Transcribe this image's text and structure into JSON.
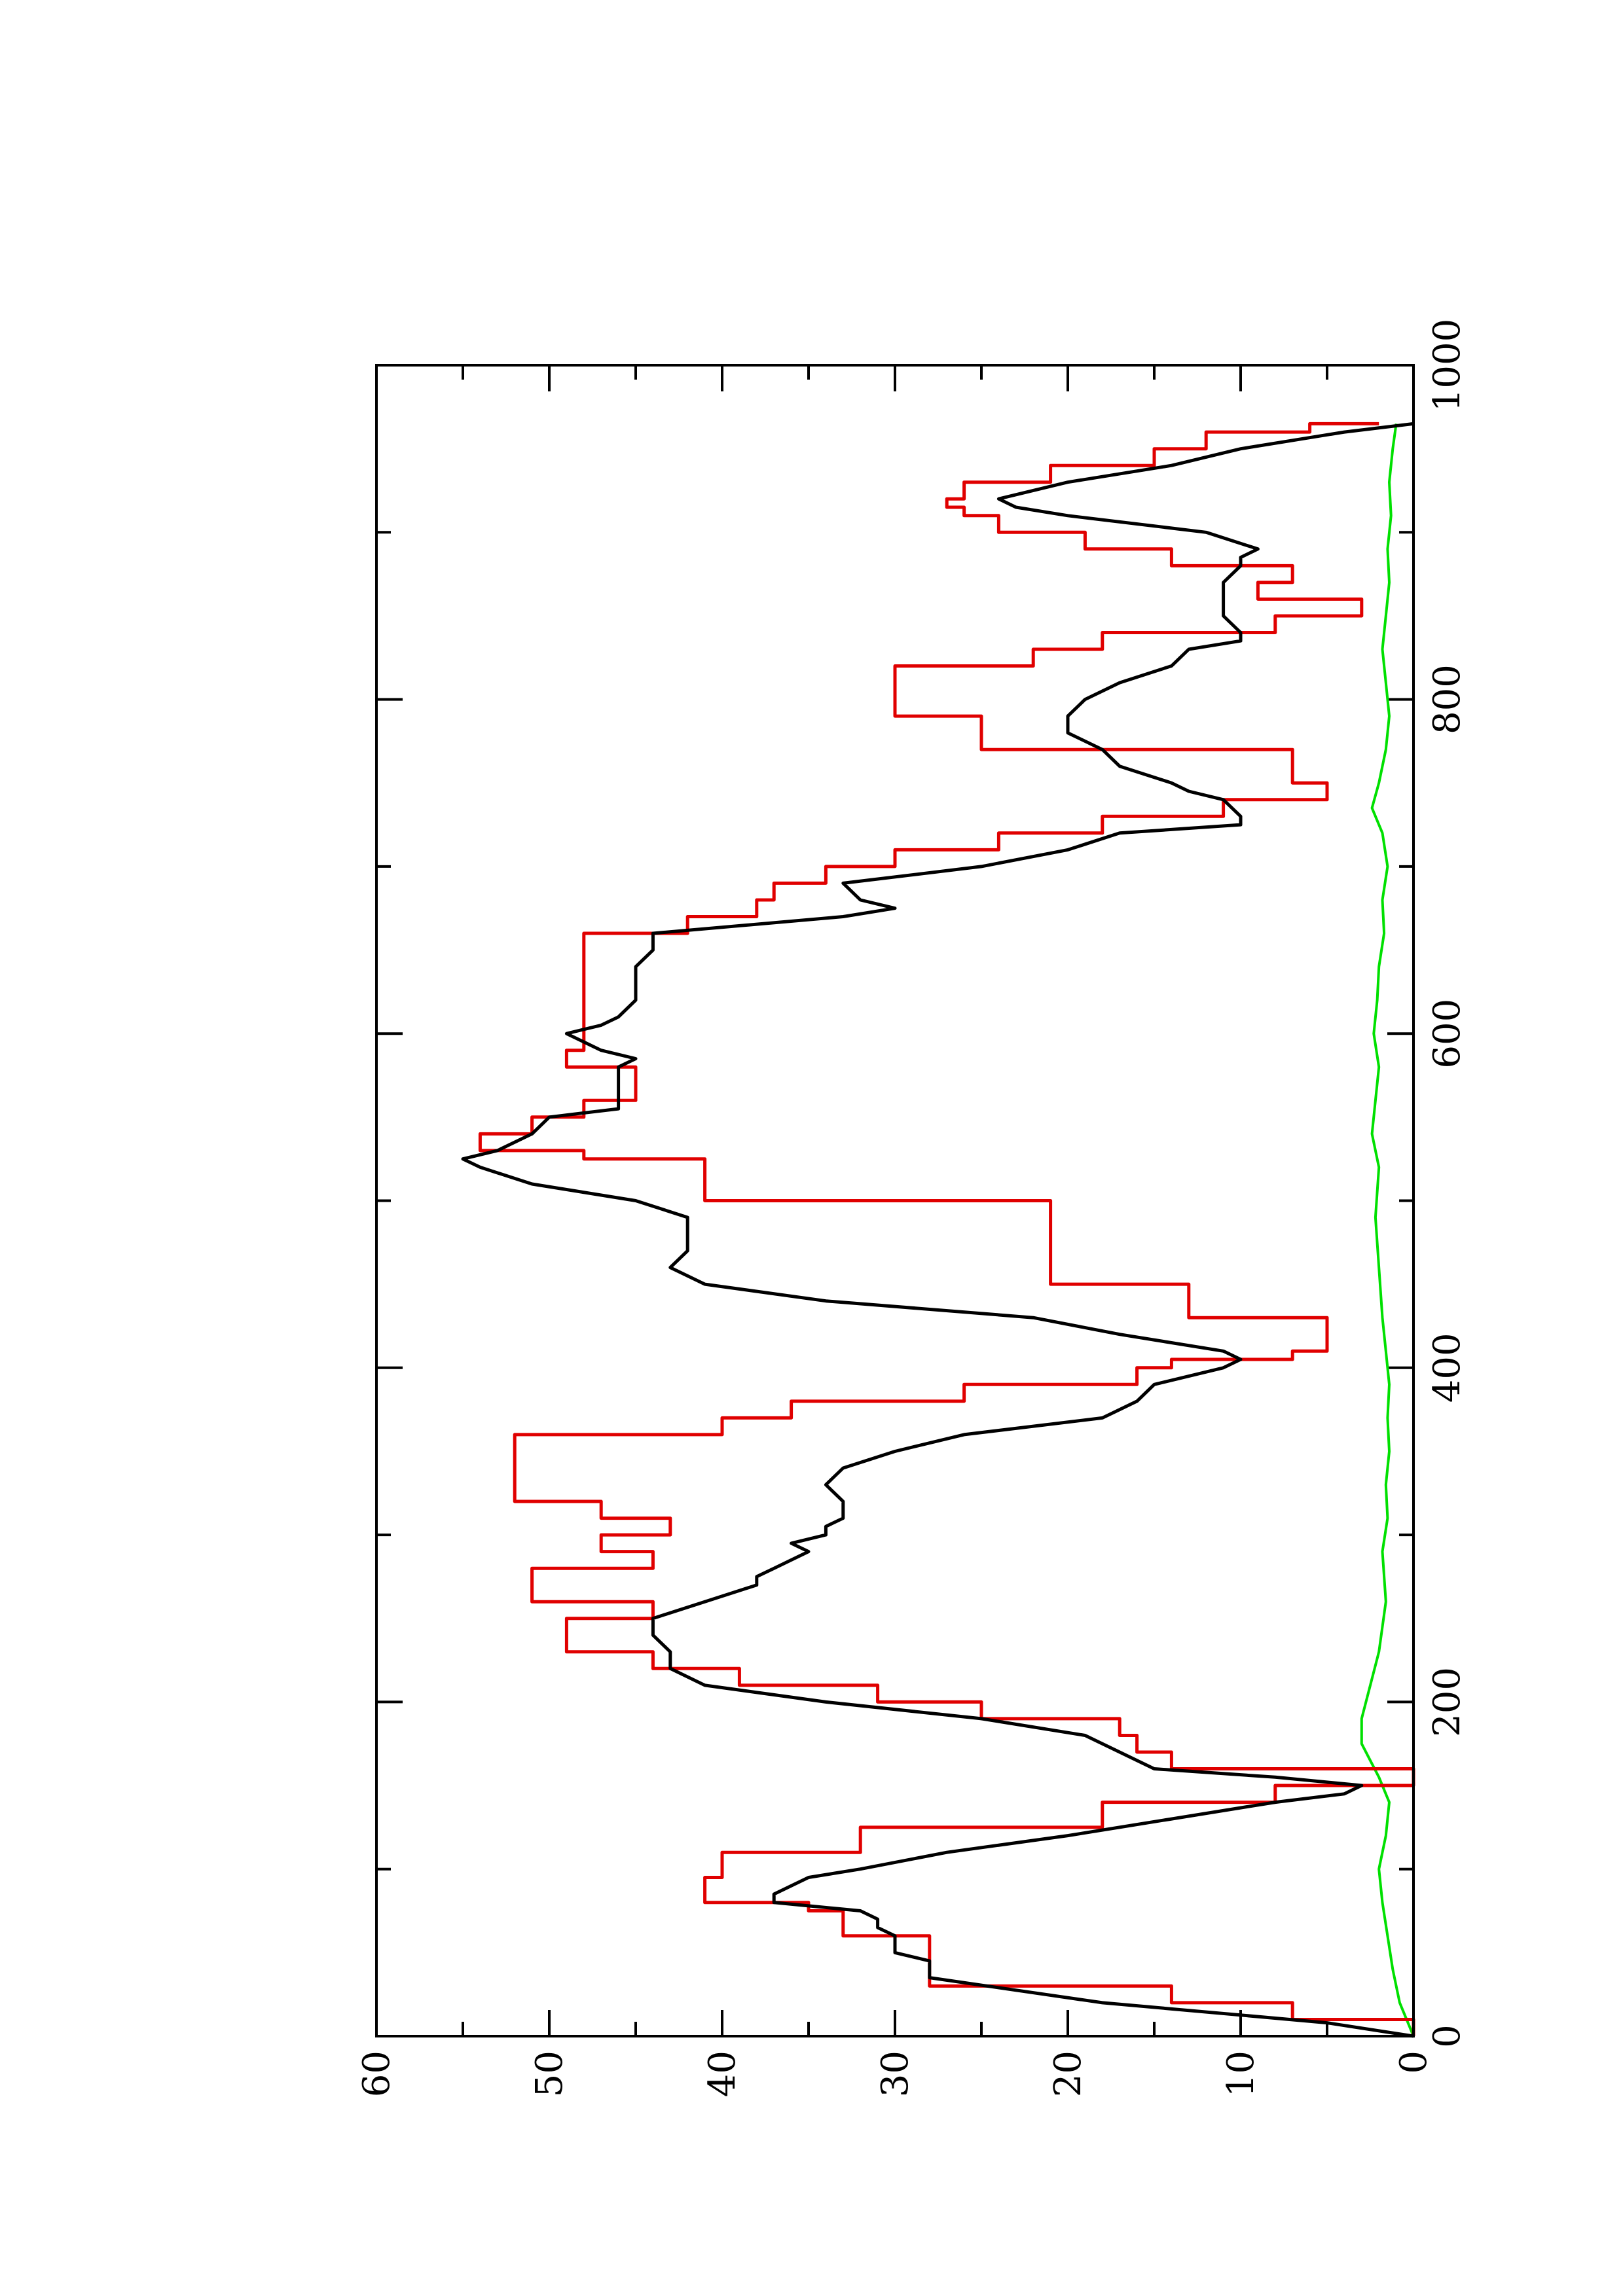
{
  "chart_data": {
    "type": "line",
    "orientation": "rotated-90-counterclockwise",
    "title": "",
    "xlabel": "",
    "ylabel": "",
    "xlim": [
      0,
      1000
    ],
    "ylim": [
      0,
      60
    ],
    "x_ticks": [
      "0",
      "200",
      "400",
      "600",
      "800",
      "1000"
    ],
    "y_ticks": [
      "0",
      "10",
      "20",
      "30",
      "40",
      "50",
      "60"
    ],
    "grid": false,
    "legend": "none",
    "colors": {
      "black": "#000000",
      "red": "#e00000",
      "green": "#00e000"
    },
    "series": [
      {
        "color_key": "black",
        "x": [
          0,
          8,
          20,
          35,
          45,
          50,
          55,
          60,
          65,
          70,
          75,
          80,
          85,
          90,
          95,
          100,
          110,
          120,
          130,
          140,
          145,
          150,
          155,
          160,
          170,
          180,
          190,
          200,
          210,
          220,
          230,
          240,
          250,
          260,
          270,
          275,
          280,
          290,
          295,
          300,
          305,
          310,
          315,
          320,
          330,
          340,
          350,
          360,
          370,
          380,
          390,
          400,
          405,
          410,
          420,
          430,
          440,
          450,
          460,
          470,
          480,
          490,
          500,
          510,
          520,
          525,
          530,
          540,
          550,
          555,
          560,
          570,
          580,
          585,
          590,
          595,
          600,
          605,
          610,
          620,
          630,
          640,
          650,
          660,
          670,
          675,
          680,
          690,
          700,
          710,
          720,
          725,
          730,
          740,
          745,
          750,
          760,
          770,
          780,
          790,
          800,
          810,
          820,
          830,
          835,
          840,
          850,
          860,
          870,
          880,
          885,
          890,
          900,
          910,
          915,
          920,
          930,
          940,
          950,
          960,
          965
        ],
        "y": [
          0,
          5,
          18,
          28,
          28,
          30,
          30,
          30,
          31,
          31,
          32,
          37,
          37,
          36,
          35,
          32,
          27,
          20,
          14,
          8,
          4,
          3,
          8,
          15,
          17,
          19,
          25,
          34,
          41,
          43,
          43,
          44,
          44,
          41,
          38,
          38,
          37,
          35,
          36,
          34,
          34,
          33,
          33,
          33,
          34,
          33,
          30,
          26,
          18,
          16,
          15,
          11,
          10,
          11,
          17,
          22,
          34,
          41,
          43,
          42,
          42,
          42,
          45,
          51,
          54,
          55,
          53,
          51,
          50,
          46,
          46,
          46,
          46,
          45,
          47,
          48,
          49,
          47,
          46,
          45,
          45,
          45,
          44,
          44,
          33,
          30,
          32,
          33,
          25,
          20,
          17,
          10,
          10,
          11,
          13,
          14,
          17,
          18,
          20,
          20,
          19,
          17,
          14,
          13,
          10,
          10,
          11,
          11,
          11,
          10,
          10,
          9,
          12,
          20,
          23,
          24,
          20,
          14,
          10,
          4,
          0
        ]
      },
      {
        "color_key": "red",
        "x": [
          0,
          10,
          20,
          30,
          45,
          60,
          75,
          80,
          95,
          110,
          125,
          140,
          150,
          160,
          170,
          180,
          190,
          200,
          210,
          220,
          230,
          240,
          250,
          255,
          260,
          270,
          280,
          285,
          290,
          295,
          300,
          305,
          310,
          320,
          335,
          350,
          360,
          370,
          380,
          390,
          400,
          405,
          410,
          420,
          430,
          450,
          500,
          515,
          525,
          530,
          540,
          550,
          555,
          560,
          570,
          580,
          590,
          600,
          620,
          640,
          650,
          660,
          670,
          680,
          690,
          700,
          710,
          720,
          730,
          740,
          750,
          770,
          790,
          810,
          820,
          830,
          840,
          850,
          860,
          870,
          880,
          890,
          900,
          910,
          915,
          920,
          930,
          940,
          950,
          960,
          965
        ],
        "y": [
          0,
          7,
          14,
          28,
          28,
          33,
          35,
          41,
          40,
          32,
          18,
          8,
          0,
          14,
          16,
          17,
          25,
          31,
          39,
          44,
          49,
          49,
          44,
          44,
          51,
          51,
          44,
          44,
          47,
          47,
          43,
          43,
          47,
          52,
          52,
          52,
          40,
          36,
          26,
          16,
          14,
          7,
          5,
          5,
          13,
          21,
          41,
          41,
          48,
          54,
          51,
          48,
          48,
          45,
          45,
          49,
          48,
          48,
          48,
          48,
          48,
          42,
          38,
          37,
          34,
          30,
          24,
          18,
          11,
          5,
          7,
          25,
          30,
          30,
          22,
          18,
          8,
          3,
          9,
          7,
          14,
          19,
          24,
          26,
          27,
          26,
          21,
          15,
          12,
          6,
          2
        ]
      },
      {
        "color_key": "green",
        "x": [
          0,
          20,
          40,
          60,
          80,
          100,
          120,
          140,
          155,
          165,
          175,
          190,
          210,
          230,
          260,
          290,
          310,
          330,
          350,
          370,
          390,
          410,
          430,
          460,
          490,
          520,
          540,
          560,
          580,
          600,
          620,
          640,
          660,
          680,
          700,
          720,
          735,
          750,
          770,
          790,
          810,
          830,
          850,
          870,
          890,
          910,
          930,
          950,
          965
        ],
        "y": [
          0,
          0.8,
          1.2,
          1.5,
          1.8,
          2,
          1.6,
          1.4,
          2,
          2.5,
          3,
          3,
          2.5,
          2,
          1.6,
          1.8,
          1.5,
          1.6,
          1.4,
          1.5,
          1.4,
          1.6,
          1.8,
          2,
          2.2,
          2,
          2.4,
          2.2,
          2,
          2.3,
          2.1,
          2,
          1.7,
          1.8,
          1.5,
          1.8,
          2.4,
          2,
          1.6,
          1.4,
          1.6,
          1.8,
          1.6,
          1.4,
          1.5,
          1.3,
          1.4,
          1.2,
          1
        ]
      }
    ]
  }
}
